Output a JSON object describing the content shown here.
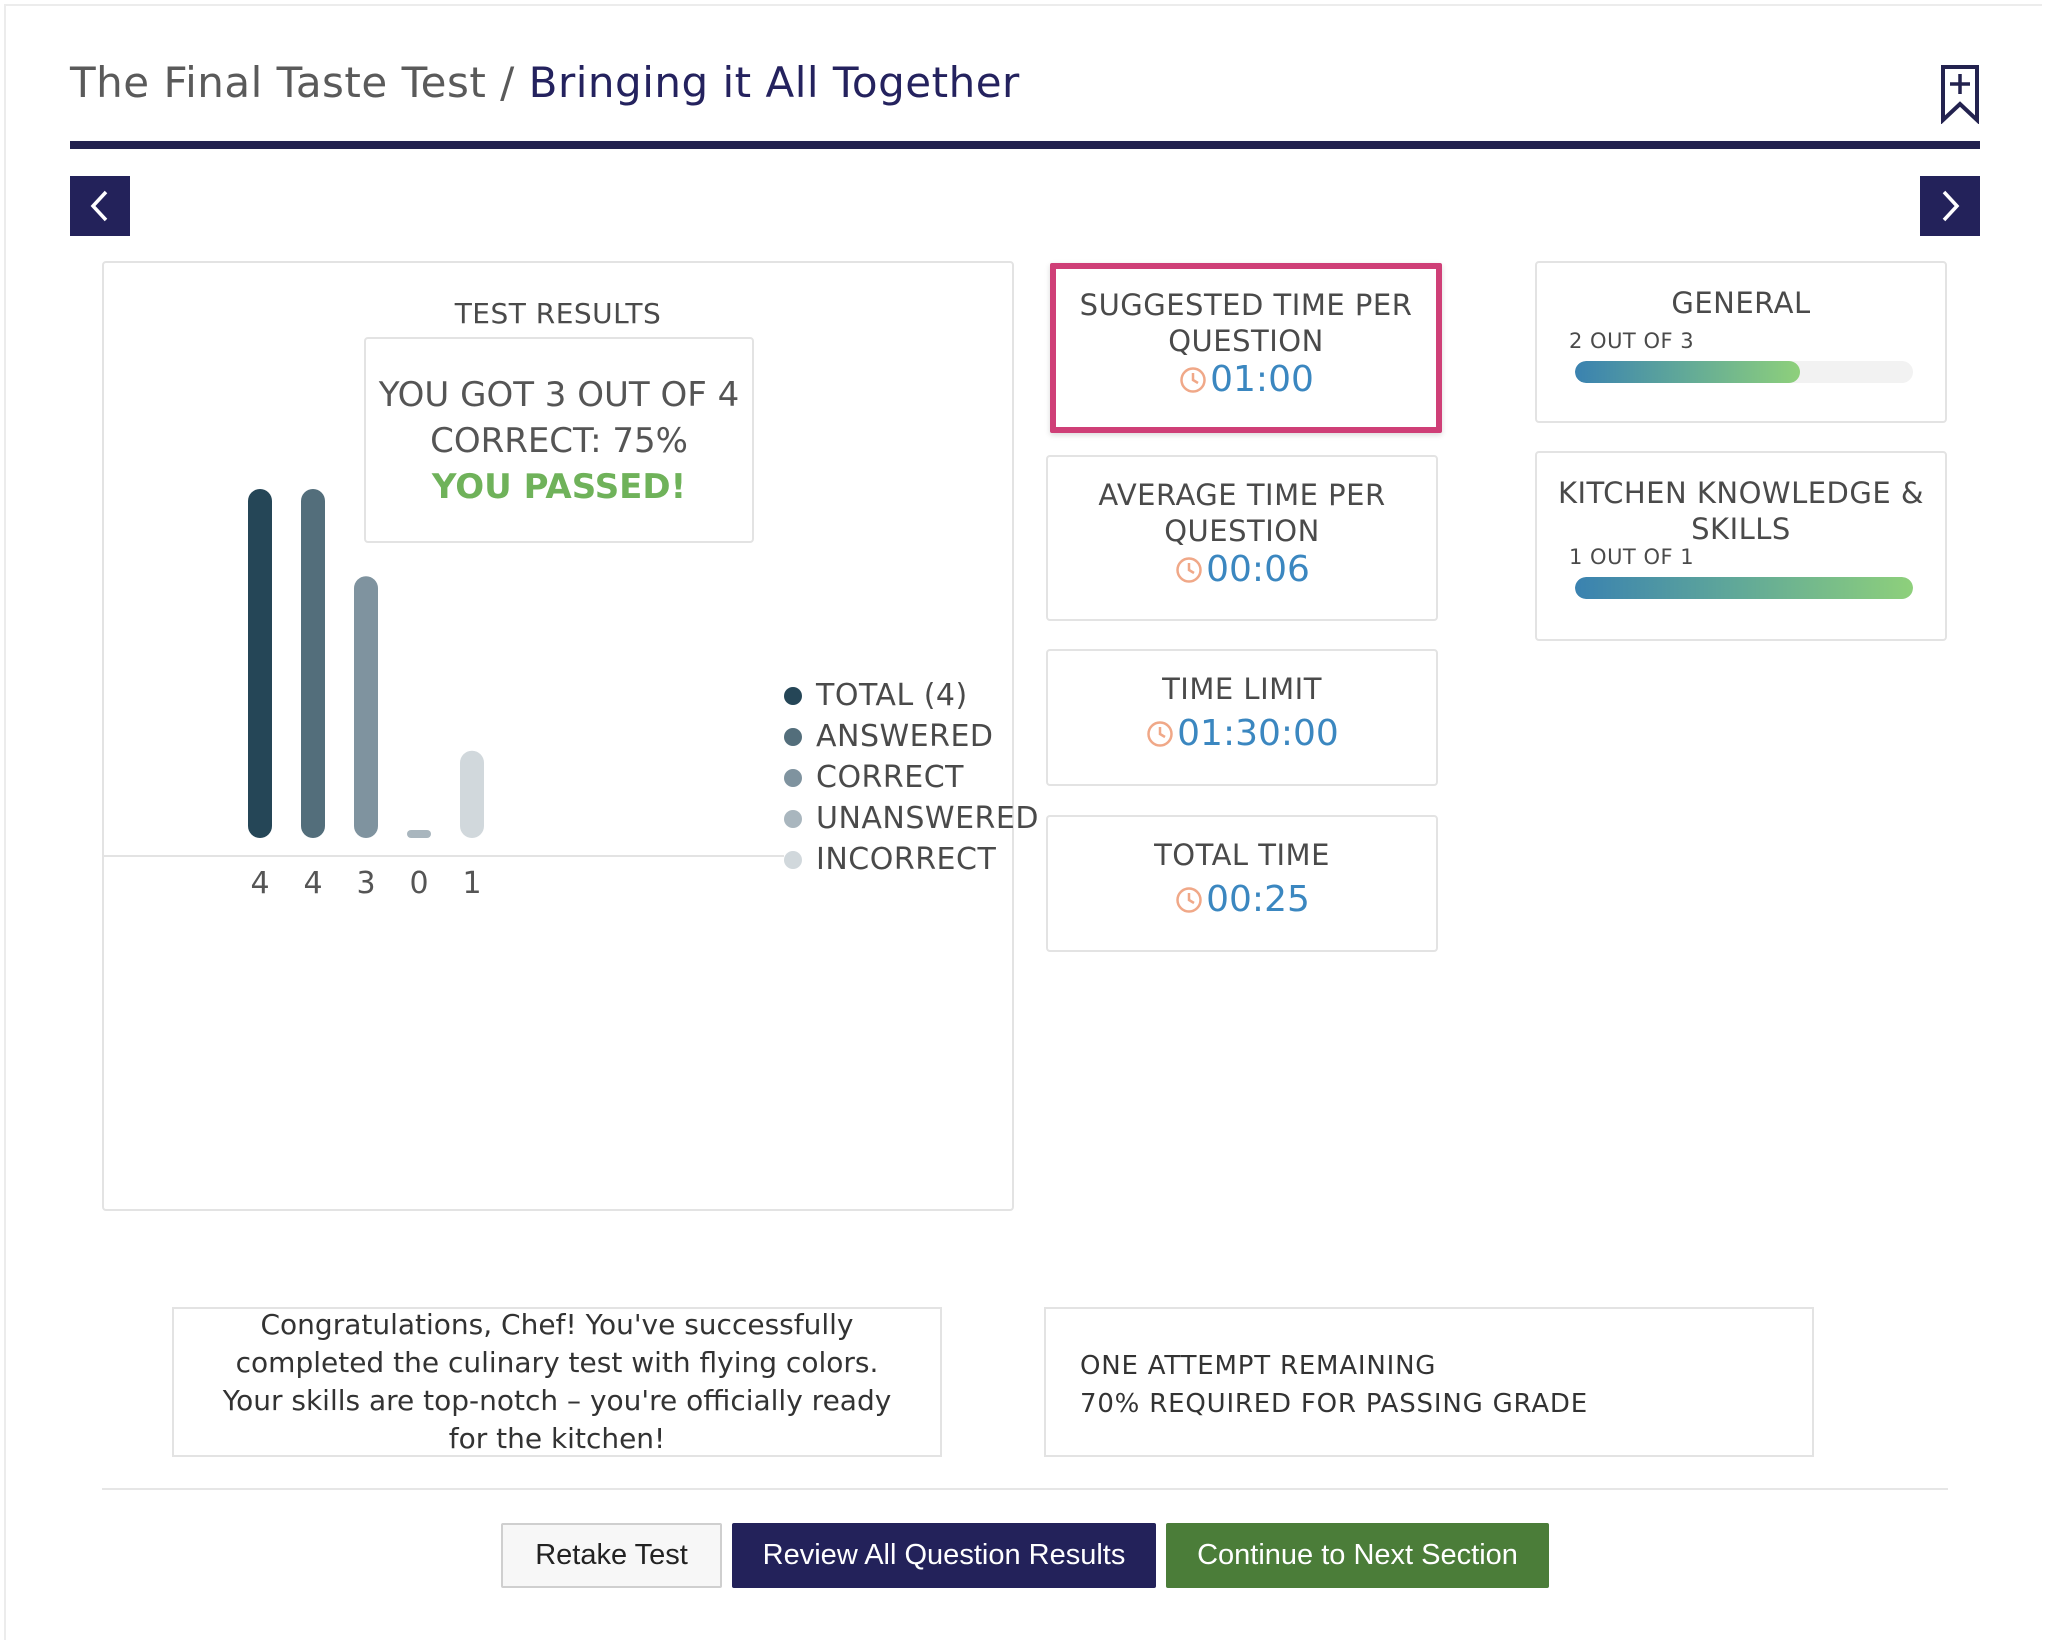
{
  "header": {
    "parent_title": "The Final Taste Test",
    "separator": " / ",
    "current_title": "Bringing it All Together"
  },
  "results": {
    "title": "TEST RESULTS",
    "score_line1": "YOU GOT 3 OUT OF 4",
    "score_line2": "CORRECT: 75%",
    "pass_text": "YOU PASSED!",
    "pass_color": "#6fb25a"
  },
  "chart_data": {
    "type": "bar",
    "categories": [
      "TOTAL (4)",
      "ANSWERED",
      "CORRECT",
      "UNANSWERED",
      "INCORRECT"
    ],
    "values": [
      4,
      4,
      3,
      0,
      1
    ],
    "tick_labels": [
      "4",
      "4",
      "3",
      "0",
      "1"
    ],
    "colors": [
      "#254657",
      "#536e7b",
      "#7f939f",
      "#a9b6be",
      "#d1d8dc"
    ],
    "ylim": [
      0,
      4
    ],
    "legend_position": "right",
    "grid": false,
    "title": "",
    "xlabel": "",
    "ylabel": ""
  },
  "stats": {
    "suggested": {
      "label_line1": "SUGGESTED TIME PER",
      "label_line2": "QUESTION",
      "value": "01:00"
    },
    "average": {
      "label_line1": "AVERAGE TIME PER",
      "label_line2": "QUESTION",
      "value": "00:06"
    },
    "limit": {
      "label": "TIME LIMIT",
      "value": "01:30:00"
    },
    "total": {
      "label": "TOTAL TIME",
      "value": "00:25"
    },
    "highlight_color": "#cf3f77",
    "value_color": "#3b87c0",
    "clock_color": "#f0a888"
  },
  "categories": [
    {
      "title_line1": "GENERAL",
      "title_line2": "",
      "sub": "2 OUT OF 3",
      "progress": 0.667
    },
    {
      "title_line1": "KITCHEN KNOWLEDGE &",
      "title_line2": "SKILLS",
      "sub": "1 OUT OF 1",
      "progress": 1.0
    }
  ],
  "message": "Congratulations, Chef! You've successfully completed the culinary test with flying colors. Your skills are top-notch – you're officially ready for the kitchen!",
  "info": {
    "line1": "ONE ATTEMPT REMAINING",
    "line2": "70% REQUIRED FOR PASSING GRADE"
  },
  "buttons": {
    "retake": "Retake Test",
    "review": "Review All Question Results",
    "continue": "Continue to Next Section"
  },
  "icons": {
    "bookmark": "bookmark-add-icon",
    "prev": "chevron-left-icon",
    "next": "chevron-right-icon",
    "clock": "clock-icon"
  },
  "colors": {
    "brand_navy": "#23225a",
    "continue_green": "#4b7d39"
  }
}
